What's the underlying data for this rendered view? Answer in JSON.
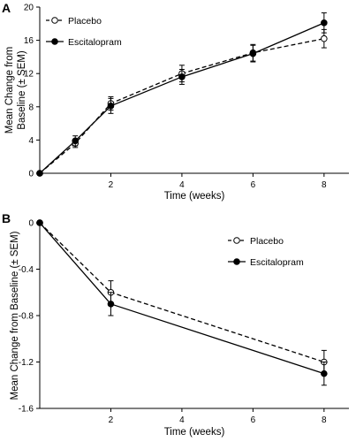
{
  "chart_data": [
    {
      "type": "line",
      "panel_label": "A",
      "xlabel": "Time (weeks)",
      "ylabel": "Mean Change from Baseline (± SEM)",
      "ylabel_lines": [
        "Mean Change from",
        "Baseline (± SEM)"
      ],
      "xlim": [
        0,
        8.7
      ],
      "ylim": [
        0,
        20
      ],
      "xticks": [
        2,
        4,
        6,
        8
      ],
      "yticks": [
        0,
        4,
        8,
        12,
        16,
        20
      ],
      "grid": false,
      "legend_position": "top-left",
      "series": [
        {
          "name": "Placebo",
          "style": "dashed",
          "marker": "open-circle",
          "x": [
            0,
            1,
            2,
            4,
            6,
            8
          ],
          "y": [
            0,
            3.6,
            8.4,
            12.0,
            14.5,
            16.2
          ],
          "err": [
            0,
            0.5,
            0.8,
            1.0,
            1.0,
            1.1
          ]
        },
        {
          "name": "Escitalopram",
          "style": "solid",
          "marker": "filled-circle",
          "x": [
            0,
            1,
            2,
            4,
            6,
            8
          ],
          "y": [
            0,
            3.9,
            8.1,
            11.6,
            14.4,
            18.1
          ],
          "err": [
            0,
            0.6,
            0.9,
            0.9,
            1.0,
            1.2
          ]
        }
      ]
    },
    {
      "type": "line",
      "panel_label": "B",
      "xlabel": "Time (weeks)",
      "ylabel": "Mean Change from Baseline (± SEM)",
      "ylabel_lines": [
        "Mean Change from Baseline (± SEM)"
      ],
      "xlim": [
        0,
        8.7
      ],
      "ylim": [
        -1.6,
        0
      ],
      "xticks": [
        2,
        4,
        6,
        8
      ],
      "yticks": [
        0,
        -0.4,
        -0.8,
        -1.2,
        -1.6
      ],
      "ytick_labels": [
        "0",
        "-0.4",
        "-0.8",
        "-1.2",
        "-1.6"
      ],
      "grid": false,
      "legend_position": "top-right",
      "series": [
        {
          "name": "Placebo",
          "style": "dashed",
          "marker": "open-circle",
          "x": [
            0,
            2,
            8
          ],
          "y": [
            0,
            -0.6,
            -1.2
          ],
          "err": [
            0,
            0.1,
            0.1
          ]
        },
        {
          "name": "Escitalopram",
          "style": "solid",
          "marker": "filled-circle",
          "x": [
            0,
            2,
            8
          ],
          "y": [
            0,
            -0.7,
            -1.3
          ],
          "err": [
            0,
            0.1,
            0.1
          ]
        }
      ]
    }
  ]
}
